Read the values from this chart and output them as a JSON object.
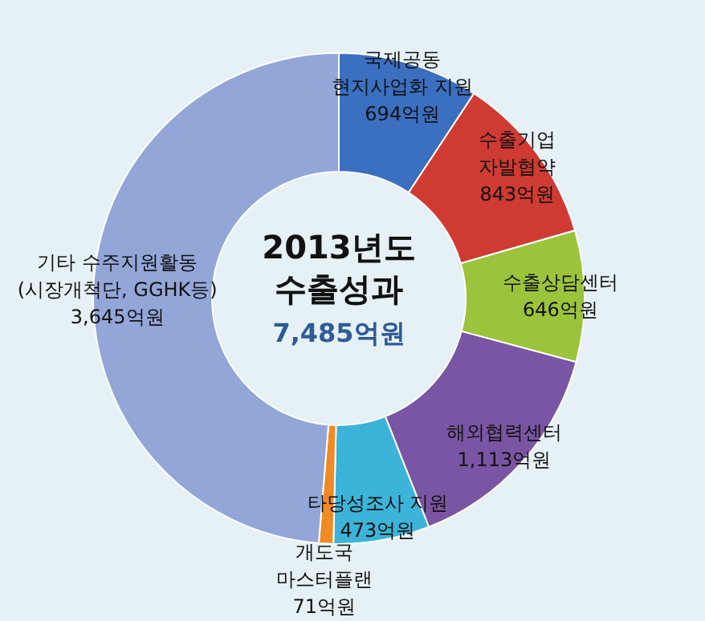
{
  "chart_data": {
    "type": "donut",
    "title": "2013년도 수출성과",
    "subtitle": "7,485억원",
    "categories": [
      "국제공동 현지사업화 지원",
      "수출기업 자발협약",
      "수출상담센터",
      "해외협력센터",
      "타당성조사 지원",
      "개도국 마스터플랜",
      "기타 수주지원활동 (시장개척단, GGHK등)"
    ],
    "values": [
      694,
      843,
      646,
      1113,
      473,
      71,
      3645
    ],
    "value_labels": [
      "694억원",
      "843억원",
      "646억원",
      "1,113억원",
      "473억원",
      "71억원",
      "3,645억원"
    ],
    "colors": [
      "#3b6fc0",
      "#cf3a32",
      "#9cc33c",
      "#7a55a3",
      "#3cb3d8",
      "#f08a24",
      "#93a6d8"
    ]
  }
}
